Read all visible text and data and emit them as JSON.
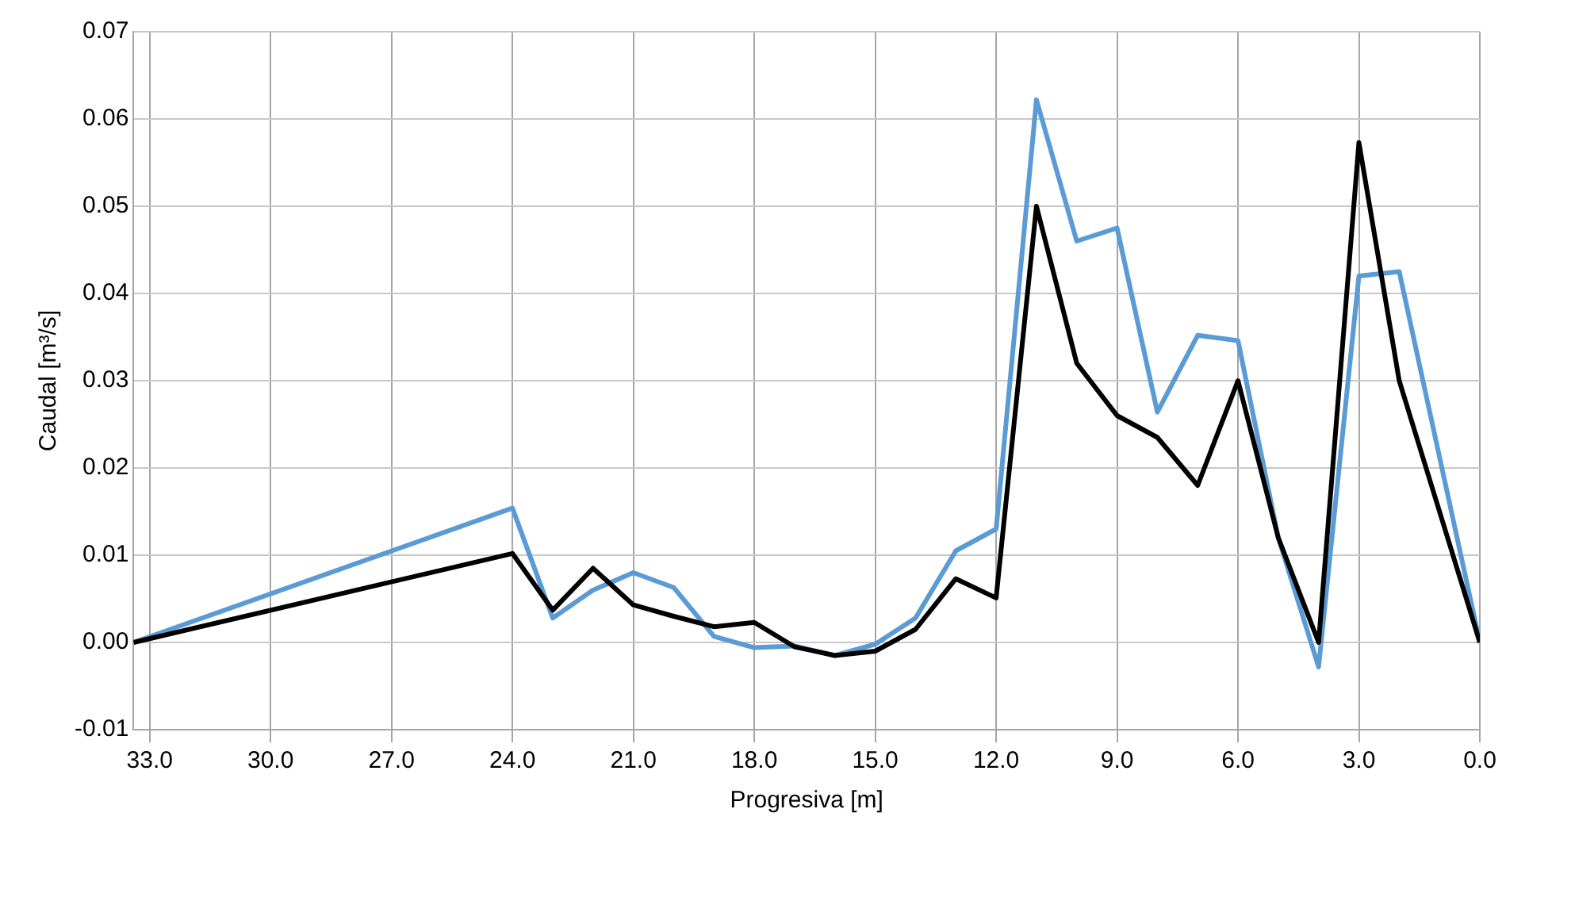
{
  "chart_data": {
    "type": "line",
    "xlabel": "Progresiva [m]",
    "ylabel": "Caudal [m³/s]",
    "x": [
      33.4,
      24,
      23,
      22,
      21,
      20,
      19,
      18,
      17,
      16,
      15,
      14,
      13,
      12,
      11,
      10,
      9,
      8,
      7,
      6,
      5,
      4,
      3,
      2,
      0
    ],
    "series": [
      {
        "color": "#000000",
        "values": [
          0,
          0.0102,
          0.0037,
          0.0085,
          0.0043,
          0.003,
          0.0018,
          0.0023,
          -0.0005,
          -0.0015,
          -0.001,
          0.0015,
          0.0073,
          0.0051,
          0.05,
          0.032,
          0.026,
          0.0235,
          0.018,
          0.03,
          0.012,
          0,
          0.0573,
          0.03,
          0
        ]
      },
      {
        "color": "#5b9bd5",
        "values": [
          0,
          0.0154,
          0.0028,
          0.006,
          0.008,
          0.0063,
          0.0007,
          -0.0006,
          -0.0004,
          -0.0015,
          -0.0002,
          0.0028,
          0.0105,
          0.013,
          0.0622,
          0.046,
          0.0475,
          0.0264,
          0.0352,
          0.0346,
          0.012,
          -0.0028,
          0.042,
          0.0425,
          0
        ]
      }
    ],
    "xlim": [
      33.4,
      0
    ],
    "xticks": [
      {
        "value": 33,
        "label": "33.0"
      },
      {
        "value": 30,
        "label": "30.0"
      },
      {
        "value": 27,
        "label": "27.0"
      },
      {
        "value": 24,
        "label": "24.0"
      },
      {
        "value": 21,
        "label": "21.0"
      },
      {
        "value": 18,
        "label": "18.0"
      },
      {
        "value": 15,
        "label": "15.0"
      },
      {
        "value": 12,
        "label": "12.0"
      },
      {
        "value": 9,
        "label": "9.0"
      },
      {
        "value": 6,
        "label": "6.0"
      },
      {
        "value": 3,
        "label": "3.0"
      },
      {
        "value": 0,
        "label": "0.0"
      }
    ],
    "ylim": [
      -0.01,
      0.07
    ],
    "yticks": [
      {
        "value": -0.01,
        "label": "-0.01"
      },
      {
        "value": 0,
        "label": "0.00"
      },
      {
        "value": 0.01,
        "label": "0.01"
      },
      {
        "value": 0.02,
        "label": "0.02"
      },
      {
        "value": 0.03,
        "label": "0.03"
      },
      {
        "value": 0.04,
        "label": "0.04"
      },
      {
        "value": 0.05,
        "label": "0.05"
      },
      {
        "value": 0.06,
        "label": "0.06"
      },
      {
        "value": 0.07,
        "label": "0.07"
      }
    ],
    "grid": true,
    "marker": "none",
    "line_style": "solid"
  }
}
